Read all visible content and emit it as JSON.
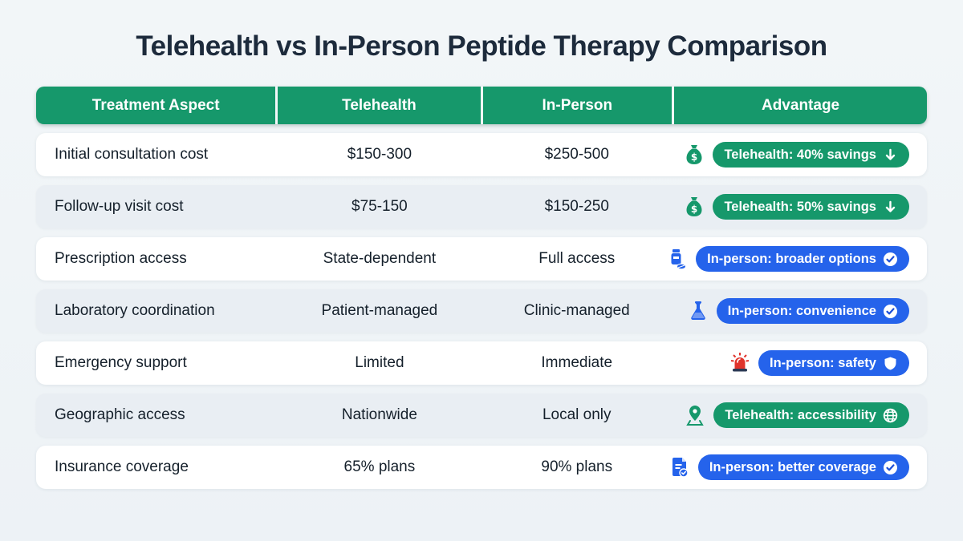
{
  "title": "Telehealth vs In-Person Peptide Therapy Comparison",
  "colors": {
    "header_green": "#16986b",
    "badge_green": "#16986b",
    "badge_blue": "#2563eb",
    "title_navy": "#1d2b3c",
    "row_alt": "#e9eef3",
    "background": "#eff3f6",
    "siren_red": "#e0342c"
  },
  "table": {
    "headers": [
      "Treatment Aspect",
      "Telehealth",
      "In-Person",
      "Advantage"
    ],
    "rows": [
      {
        "aspect": "Initial consultation cost",
        "telehealth": "$150-300",
        "in_person": "$250-500",
        "advantage": {
          "icon": "money-bag",
          "label": "Telehealth: 40% savings",
          "color": "green",
          "trailing_icon": "arrow-down"
        }
      },
      {
        "aspect": "Follow-up visit cost",
        "telehealth": "$75-150",
        "in_person": "$150-250",
        "advantage": {
          "icon": "money-bag",
          "label": "Telehealth: 50% savings",
          "color": "green",
          "trailing_icon": "arrow-down"
        }
      },
      {
        "aspect": "Prescription access",
        "telehealth": "State-dependent",
        "in_person": "Full access",
        "advantage": {
          "icon": "pill-bottle",
          "label": "In-person: broader options",
          "color": "blue",
          "trailing_icon": "check-circle"
        }
      },
      {
        "aspect": "Laboratory coordination",
        "telehealth": "Patient-managed",
        "in_person": "Clinic-managed",
        "advantage": {
          "icon": "flask",
          "label": "In-person: convenience",
          "color": "blue",
          "trailing_icon": "check-circle"
        }
      },
      {
        "aspect": "Emergency support",
        "telehealth": "Limited",
        "in_person": "Immediate",
        "advantage": {
          "icon": "siren",
          "label": "In-person: safety",
          "color": "blue",
          "trailing_icon": "shield"
        }
      },
      {
        "aspect": "Geographic access",
        "telehealth": "Nationwide",
        "in_person": "Local only",
        "advantage": {
          "icon": "map-pin",
          "label": "Telehealth: accessibility",
          "color": "green",
          "trailing_icon": "globe"
        }
      },
      {
        "aspect": "Insurance coverage",
        "telehealth": "65% plans",
        "in_person": "90% plans",
        "advantage": {
          "icon": "document-check",
          "label": "In-person: better coverage",
          "color": "blue",
          "trailing_icon": "check-circle"
        }
      }
    ]
  },
  "chart_data": {
    "type": "table",
    "title": "Telehealth vs In-Person Peptide Therapy Comparison",
    "columns": [
      "Treatment Aspect",
      "Telehealth",
      "In-Person",
      "Advantage"
    ],
    "rows": [
      [
        "Initial consultation cost",
        "$150-300",
        "$250-500",
        "Telehealth: 40% savings"
      ],
      [
        "Follow-up visit cost",
        "$75-150",
        "$150-250",
        "Telehealth: 50% savings"
      ],
      [
        "Prescription access",
        "State-dependent",
        "Full access",
        "In-person: broader options"
      ],
      [
        "Laboratory coordination",
        "Patient-managed",
        "Clinic-managed",
        "In-person: convenience"
      ],
      [
        "Emergency support",
        "Limited",
        "Immediate",
        "In-person: safety"
      ],
      [
        "Geographic access",
        "Nationwide",
        "Local only",
        "Telehealth: accessibility"
      ],
      [
        "Insurance coverage",
        "65% plans",
        "90% plans",
        "In-person: better coverage"
      ]
    ]
  }
}
